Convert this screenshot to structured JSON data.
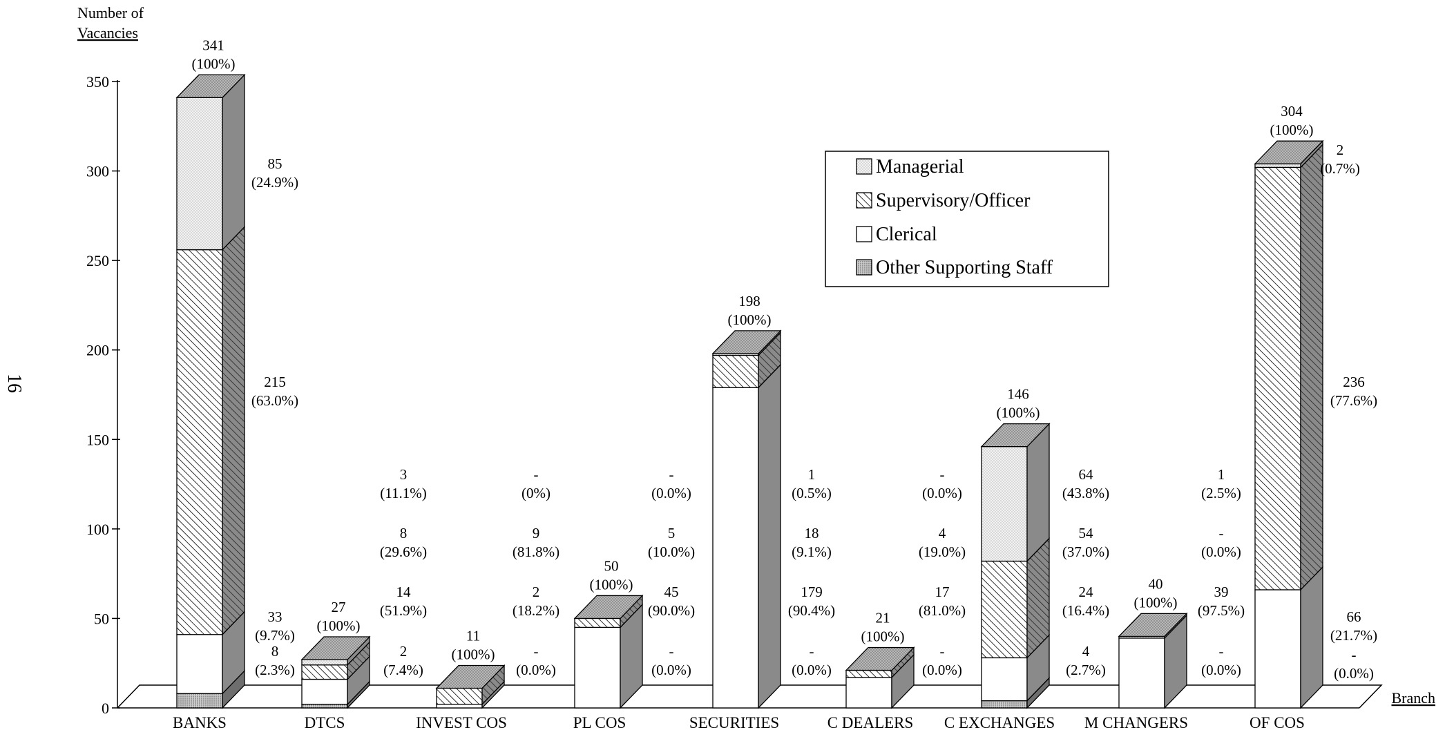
{
  "page_number": "16",
  "chart_data": {
    "type": "bar",
    "stacked": true,
    "three_d": true,
    "ylabel_line1": "Number of",
    "ylabel_line2": "Vacancies",
    "xlabel": "Branch",
    "ylim": [
      0,
      350
    ],
    "yticks": [
      "0",
      "50",
      "100",
      "150",
      "200",
      "250",
      "300",
      "350"
    ],
    "legend_position": "top-right",
    "categories": [
      "BANKS",
      "DTCS",
      "INVEST COS",
      "PL COS",
      "SECURITIES",
      "C DEALERS",
      "C EXCHANGES",
      "M CHANGERS",
      "OF COS"
    ],
    "totals": [
      341,
      27,
      11,
      50,
      198,
      21,
      146,
      40,
      304
    ],
    "total_labels": [
      "341",
      "27",
      "11",
      "50",
      "198",
      "21",
      "146",
      "40",
      "304"
    ],
    "total_pct_labels": [
      "(100%)",
      "(100%)",
      "(100%)",
      "(100%)",
      "(100%)",
      "(100%)",
      "(100%)",
      "(100%)",
      "(100%)"
    ],
    "series": [
      {
        "name": "Other Supporting Staff",
        "color": "#c8c8c8",
        "pattern": "dots-dense",
        "values": [
          8,
          2,
          0,
          0,
          0,
          0,
          4,
          0,
          0
        ],
        "value_labels": [
          "8",
          "2",
          "-",
          "-",
          "-",
          "-",
          "4",
          "-",
          "-"
        ],
        "pct_labels": [
          "(2.3%)",
          "(7.4%)",
          "(0.0%)",
          "(0.0%)",
          "(0.0%)",
          "(0.0%)",
          "(2.7%)",
          "(0.0%)",
          "(0.0%)"
        ]
      },
      {
        "name": "Clerical",
        "color": "#ffffff",
        "pattern": "none",
        "values": [
          33,
          14,
          2,
          45,
          179,
          17,
          24,
          39,
          66
        ],
        "value_labels": [
          "33",
          "14",
          "2",
          "45",
          "179",
          "17",
          "24",
          "39",
          "66"
        ],
        "pct_labels": [
          "(9.7%)",
          "(51.9%)",
          "(18.2%)",
          "(90.0%)",
          "(90.4%)",
          "(81.0%)",
          "(16.4%)",
          "(97.5%)",
          "(21.7%)"
        ]
      },
      {
        "name": "Supervisory/Officer",
        "color": "#ffffff",
        "pattern": "diagonal-hatch",
        "values": [
          215,
          8,
          9,
          5,
          18,
          4,
          54,
          0,
          236
        ],
        "value_labels": [
          "215",
          "8",
          "9",
          "5",
          "18",
          "4",
          "54",
          "-",
          "236"
        ],
        "pct_labels": [
          "(63.0%)",
          "(29.6%)",
          "(81.8%)",
          "(10.0%)",
          "(9.1%)",
          "(19.0%)",
          "(37.0%)",
          "(0.0%)",
          "(77.6%)"
        ]
      },
      {
        "name": "Managerial",
        "color": "#e8e8e8",
        "pattern": "dots-light",
        "values": [
          85,
          3,
          0,
          0,
          1,
          0,
          64,
          1,
          2
        ],
        "value_labels": [
          "85",
          "3",
          "-",
          "-",
          "1",
          "-",
          "64",
          "1",
          "2"
        ],
        "pct_labels": [
          "(24.9%)",
          "(11.1%)",
          "(0%)",
          "(0.0%)",
          "(0.5%)",
          "(0.0%)",
          "(43.8%)",
          "(2.5%)",
          "(0.7%)"
        ]
      }
    ],
    "legend_order": [
      "Managerial",
      "Supervisory/Officer",
      "Clerical",
      "Other Supporting Staff"
    ]
  }
}
